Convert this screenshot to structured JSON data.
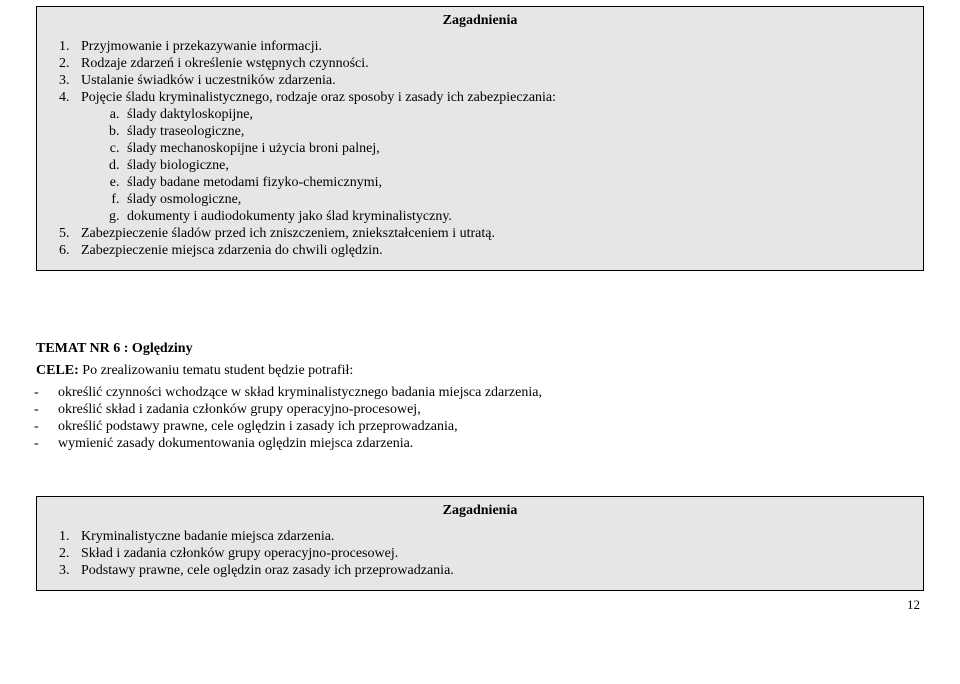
{
  "box1": {
    "title": "Zagadnienia",
    "items": [
      {
        "text": "Przyjmowanie i przekazywanie informacji."
      },
      {
        "text": "Rodzaje zdarzeń i określenie wstępnych czynności."
      },
      {
        "text": "Ustalanie świadków i uczestników zdarzenia."
      },
      {
        "text": "Pojęcie śladu kryminalistycznego, rodzaje oraz sposoby i zasady ich zabezpieczania:",
        "sub": [
          "ślady daktyloskopijne,",
          "ślady traseologiczne,",
          "ślady mechanoskopijne i użycia broni palnej,",
          "ślady biologiczne,",
          "ślady badane metodami fizyko-chemicznymi,",
          "ślady osmologiczne,",
          "dokumenty i audiodokumenty jako ślad kryminalistyczny."
        ]
      },
      {
        "text": "Zabezpieczenie śladów przed ich zniszczeniem, zniekształceniem i utratą."
      },
      {
        "text": "Zabezpieczenie miejsca zdarzenia do chwili oględzin."
      }
    ]
  },
  "section": {
    "heading": "TEMAT NR 6 : Oględziny",
    "cele_label": "CELE:",
    "cele_tail": " Po zrealizowaniu tematu student będzie potrafił:",
    "bullets": [
      "określić czynności wchodzące w skład kryminalistycznego badania miejsca zdarzenia,",
      "określić skład i zadania członków grupy operacyjno-procesowej,",
      "określić podstawy prawne, cele oględzin i zasady ich przeprowadzania,",
      "wymienić zasady dokumentowania oględzin miejsca zdarzenia."
    ]
  },
  "box2": {
    "title": "Zagadnienia",
    "items": [
      "Kryminalistyczne badanie miejsca zdarzenia.",
      "Skład i zadania członków grupy operacyjno-procesowej.",
      "Podstawy prawne, cele oględzin oraz zasady ich przeprowadzania."
    ]
  },
  "page_number": "12"
}
